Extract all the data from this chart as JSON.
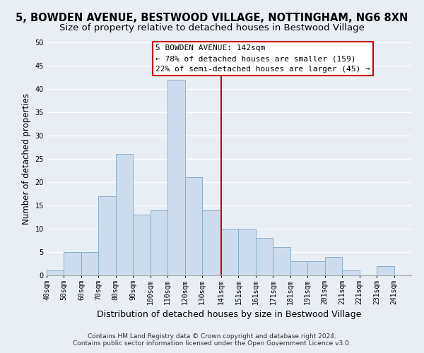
{
  "title": "5, BOWDEN AVENUE, BESTWOOD VILLAGE, NOTTINGHAM, NG6 8XN",
  "subtitle": "Size of property relative to detached houses in Bestwood Village",
  "xlabel": "Distribution of detached houses by size in Bestwood Village",
  "ylabel": "Number of detached properties",
  "footnote1": "Contains HM Land Registry data © Crown copyright and database right 2024.",
  "footnote2": "Contains public sector information licensed under the Open Government Licence v3.0.",
  "bar_left_edges": [
    40,
    50,
    60,
    70,
    80,
    90,
    100,
    110,
    120,
    130,
    141,
    151,
    161,
    171,
    181,
    191,
    201,
    211,
    221,
    231
  ],
  "bar_heights": [
    1,
    5,
    5,
    17,
    26,
    13,
    14,
    42,
    21,
    14,
    10,
    10,
    8,
    6,
    3,
    3,
    4,
    1,
    0,
    2
  ],
  "bar_color": "#cddcec",
  "bar_edge_color": "#8aafc8",
  "xlim_left": 40,
  "xlim_right": 251,
  "ylim_top": 50,
  "yticks": [
    0,
    5,
    10,
    15,
    20,
    25,
    30,
    35,
    40,
    45,
    50
  ],
  "xtick_labels": [
    "40sqm",
    "50sqm",
    "60sqm",
    "70sqm",
    "80sqm",
    "90sqm",
    "100sqm",
    "110sqm",
    "120sqm",
    "130sqm",
    "141sqm",
    "151sqm",
    "161sqm",
    "171sqm",
    "181sqm",
    "191sqm",
    "201sqm",
    "211sqm",
    "221sqm",
    "231sqm",
    "241sqm"
  ],
  "xtick_positions": [
    40,
    50,
    60,
    70,
    80,
    90,
    100,
    110,
    120,
    130,
    141,
    151,
    161,
    171,
    181,
    191,
    201,
    211,
    221,
    231,
    241
  ],
  "vline_x": 141,
  "vline_color": "#cc0000",
  "annotation_title": "5 BOWDEN AVENUE: 142sqm",
  "annotation_line1": "← 78% of detached houses are smaller (159)",
  "annotation_line2": "22% of semi-detached houses are larger (45) →",
  "background_color": "#e8eef4",
  "grid_color": "#ffffff",
  "title_fontsize": 10.5,
  "subtitle_fontsize": 9.5,
  "axis_label_fontsize": 9,
  "tick_fontsize": 7,
  "annotation_fontsize": 8,
  "footnote_fontsize": 6.5,
  "ylabel_fontsize": 8.5
}
